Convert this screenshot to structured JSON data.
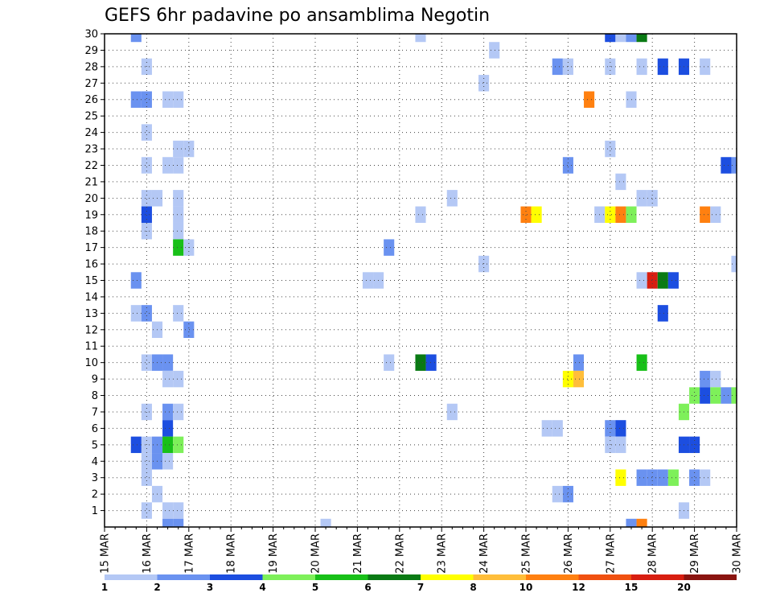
{
  "chart_data": {
    "type": "heatmap",
    "title": "GEFS 6hr padavine po ansamblima Negotin",
    "xlabel": "",
    "ylabel": "",
    "x_tick_labels": [
      "15 MAR",
      "16 MAR",
      "17 MAR",
      "18 MAR",
      "19 MAR",
      "20 MAR",
      "21 MAR",
      "22 MAR",
      "23 MAR",
      "24 MAR",
      "25 MAR",
      "26 MAR",
      "27 MAR",
      "28 MAR",
      "29 MAR",
      "30 MAR"
    ],
    "x_range_days": [
      15,
      30
    ],
    "y_tick_labels": [
      "1",
      "2",
      "3",
      "4",
      "5",
      "6",
      "7",
      "8",
      "9",
      "10",
      "11",
      "12",
      "13",
      "14",
      "15",
      "16",
      "17",
      "18",
      "19",
      "20",
      "21",
      "22",
      "23",
      "24",
      "25",
      "26",
      "27",
      "28",
      "29",
      "30"
    ],
    "y_range": [
      0,
      30
    ],
    "grid": true,
    "legend_placement": "bottom",
    "levels": [
      {
        "label": "1",
        "color": "#b4c8f5"
      },
      {
        "label": "2",
        "color": "#6a92f0"
      },
      {
        "label": "3",
        "color": "#1c4ee0"
      },
      {
        "label": "4",
        "color": "#7ef05a"
      },
      {
        "label": "5",
        "color": "#18c018"
      },
      {
        "label": "6",
        "color": "#0a7a14"
      },
      {
        "label": "7",
        "color": "#ffff00"
      },
      {
        "label": "8",
        "color": "#ffbe3a"
      },
      {
        "label": "10",
        "color": "#ff8010"
      },
      {
        "label": "12",
        "color": "#f05010"
      },
      {
        "label": "15",
        "color": "#d81e10"
      },
      {
        "label": "20",
        "color": "#8a1410"
      }
    ],
    "cells": [
      {
        "day": 15.75,
        "member": 30,
        "level": 1
      },
      {
        "day": 15.75,
        "member": 26,
        "level": 1
      },
      {
        "day": 15.75,
        "member": 15,
        "level": 1
      },
      {
        "day": 15.75,
        "member": 13,
        "level": 0
      },
      {
        "day": 15.75,
        "member": 5,
        "level": 2
      },
      {
        "day": 16.0,
        "member": 28,
        "level": 0
      },
      {
        "day": 16.0,
        "member": 26,
        "level": 1
      },
      {
        "day": 16.0,
        "member": 24,
        "level": 0
      },
      {
        "day": 16.0,
        "member": 22,
        "level": 0
      },
      {
        "day": 16.0,
        "member": 20,
        "level": 0
      },
      {
        "day": 16.0,
        "member": 19,
        "level": 2
      },
      {
        "day": 16.0,
        "member": 18,
        "level": 0
      },
      {
        "day": 16.0,
        "member": 13,
        "level": 1
      },
      {
        "day": 16.0,
        "member": 10,
        "level": 0
      },
      {
        "day": 16.0,
        "member": 7,
        "level": 0
      },
      {
        "day": 16.0,
        "member": 5,
        "level": 0
      },
      {
        "day": 16.0,
        "member": 4,
        "level": 0
      },
      {
        "day": 16.0,
        "member": 3,
        "level": 0
      },
      {
        "day": 16.0,
        "member": 1,
        "level": 0
      },
      {
        "day": 16.25,
        "member": 20,
        "level": 0
      },
      {
        "day": 16.25,
        "member": 12,
        "level": 0
      },
      {
        "day": 16.25,
        "member": 10,
        "level": 1
      },
      {
        "day": 16.25,
        "member": 5,
        "level": 1
      },
      {
        "day": 16.25,
        "member": 4,
        "level": 1
      },
      {
        "day": 16.25,
        "member": 2,
        "level": 0
      },
      {
        "day": 16.5,
        "member": 26,
        "level": 0
      },
      {
        "day": 16.5,
        "member": 22,
        "level": 0
      },
      {
        "day": 16.5,
        "member": 10,
        "level": 1
      },
      {
        "day": 16.5,
        "member": 9,
        "level": 0
      },
      {
        "day": 16.5,
        "member": 7,
        "level": 1
      },
      {
        "day": 16.5,
        "member": 6,
        "level": 2
      },
      {
        "day": 16.5,
        "member": 5,
        "level": 4
      },
      {
        "day": 16.5,
        "member": 4,
        "level": 0
      },
      {
        "day": 16.5,
        "member": 1,
        "level": 0
      },
      {
        "day": 16.5,
        "member": 0,
        "level": 1
      },
      {
        "day": 16.75,
        "member": 26,
        "level": 0
      },
      {
        "day": 16.75,
        "member": 23,
        "level": 0
      },
      {
        "day": 16.75,
        "member": 22,
        "level": 0
      },
      {
        "day": 16.75,
        "member": 20,
        "level": 0
      },
      {
        "day": 16.75,
        "member": 19,
        "level": 0
      },
      {
        "day": 16.75,
        "member": 18,
        "level": 0
      },
      {
        "day": 16.75,
        "member": 17,
        "level": 4
      },
      {
        "day": 16.75,
        "member": 13,
        "level": 0
      },
      {
        "day": 16.75,
        "member": 9,
        "level": 0
      },
      {
        "day": 16.75,
        "member": 7,
        "level": 0
      },
      {
        "day": 16.75,
        "member": 5,
        "level": 3
      },
      {
        "day": 16.75,
        "member": 1,
        "level": 0
      },
      {
        "day": 16.75,
        "member": 0,
        "level": 1
      },
      {
        "day": 17.0,
        "member": 23,
        "level": 0
      },
      {
        "day": 17.0,
        "member": 17,
        "level": 0
      },
      {
        "day": 17.0,
        "member": 12,
        "level": 1
      },
      {
        "day": 20.25,
        "member": 0,
        "level": 0
      },
      {
        "day": 21.25,
        "member": 15,
        "level": 0
      },
      {
        "day": 21.5,
        "member": 15,
        "level": 0
      },
      {
        "day": 21.75,
        "member": 17,
        "level": 1
      },
      {
        "day": 21.75,
        "member": 10,
        "level": 0
      },
      {
        "day": 22.5,
        "member": 30,
        "level": 0
      },
      {
        "day": 22.5,
        "member": 19,
        "level": 0
      },
      {
        "day": 22.5,
        "member": 10,
        "level": 5
      },
      {
        "day": 22.75,
        "member": 10,
        "level": 2
      },
      {
        "day": 23.25,
        "member": 20,
        "level": 0
      },
      {
        "day": 23.25,
        "member": 7,
        "level": 0
      },
      {
        "day": 24.0,
        "member": 27,
        "level": 0
      },
      {
        "day": 24.0,
        "member": 16,
        "level": 0
      },
      {
        "day": 24.25,
        "member": 29,
        "level": 0
      },
      {
        "day": 25.0,
        "member": 19,
        "level": 8
      },
      {
        "day": 25.25,
        "member": 19,
        "level": 6
      },
      {
        "day": 25.5,
        "member": 6,
        "level": 0
      },
      {
        "day": 25.75,
        "member": 28,
        "level": 1
      },
      {
        "day": 25.75,
        "member": 6,
        "level": 0
      },
      {
        "day": 25.75,
        "member": 2,
        "level": 0
      },
      {
        "day": 26.0,
        "member": 28,
        "level": 0
      },
      {
        "day": 26.0,
        "member": 22,
        "level": 1
      },
      {
        "day": 26.0,
        "member": 9,
        "level": 6
      },
      {
        "day": 26.0,
        "member": 2,
        "level": 1
      },
      {
        "day": 26.25,
        "member": 10,
        "level": 1
      },
      {
        "day": 26.25,
        "member": 9,
        "level": 7
      },
      {
        "day": 26.5,
        "member": 26,
        "level": 8
      },
      {
        "day": 26.75,
        "member": 19,
        "level": 0
      },
      {
        "day": 27.0,
        "member": 30,
        "level": 2
      },
      {
        "day": 27.0,
        "member": 28,
        "level": 0
      },
      {
        "day": 27.0,
        "member": 23,
        "level": 0
      },
      {
        "day": 27.0,
        "member": 19,
        "level": 6
      },
      {
        "day": 27.0,
        "member": 6,
        "level": 1
      },
      {
        "day": 27.0,
        "member": 5,
        "level": 0
      },
      {
        "day": 27.25,
        "member": 30,
        "level": 0
      },
      {
        "day": 27.25,
        "member": 21,
        "level": 0
      },
      {
        "day": 27.25,
        "member": 19,
        "level": 8
      },
      {
        "day": 27.25,
        "member": 6,
        "level": 2
      },
      {
        "day": 27.25,
        "member": 5,
        "level": 0
      },
      {
        "day": 27.25,
        "member": 3,
        "level": 6
      },
      {
        "day": 27.5,
        "member": 30,
        "level": 1
      },
      {
        "day": 27.5,
        "member": 26,
        "level": 0
      },
      {
        "day": 27.5,
        "member": 19,
        "level": 3
      },
      {
        "day": 27.5,
        "member": 0,
        "level": 1
      },
      {
        "day": 27.75,
        "member": 30,
        "level": 5
      },
      {
        "day": 27.75,
        "member": 28,
        "level": 0
      },
      {
        "day": 27.75,
        "member": 20,
        "level": 0
      },
      {
        "day": 27.75,
        "member": 15,
        "level": 0
      },
      {
        "day": 27.75,
        "member": 10,
        "level": 4
      },
      {
        "day": 27.75,
        "member": 3,
        "level": 1
      },
      {
        "day": 27.75,
        "member": 0,
        "level": 8
      },
      {
        "day": 28.0,
        "member": 20,
        "level": 0
      },
      {
        "day": 28.0,
        "member": 15,
        "level": 10
      },
      {
        "day": 28.0,
        "member": 3,
        "level": 1
      },
      {
        "day": 28.25,
        "member": 28,
        "level": 2
      },
      {
        "day": 28.25,
        "member": 15,
        "level": 5
      },
      {
        "day": 28.25,
        "member": 13,
        "level": 2
      },
      {
        "day": 28.25,
        "member": 3,
        "level": 1
      },
      {
        "day": 28.5,
        "member": 15,
        "level": 2
      },
      {
        "day": 28.5,
        "member": 3,
        "level": 3
      },
      {
        "day": 28.75,
        "member": 28,
        "level": 2
      },
      {
        "day": 28.75,
        "member": 7,
        "level": 3
      },
      {
        "day": 28.75,
        "member": 5,
        "level": 2
      },
      {
        "day": 28.75,
        "member": 1,
        "level": 0
      },
      {
        "day": 29.0,
        "member": 8,
        "level": 3
      },
      {
        "day": 29.0,
        "member": 5,
        "level": 2
      },
      {
        "day": 29.0,
        "member": 3,
        "level": 1
      },
      {
        "day": 29.25,
        "member": 28,
        "level": 0
      },
      {
        "day": 29.25,
        "member": 19,
        "level": 8
      },
      {
        "day": 29.25,
        "member": 9,
        "level": 1
      },
      {
        "day": 29.25,
        "member": 8,
        "level": 2
      },
      {
        "day": 29.25,
        "member": 3,
        "level": 0
      },
      {
        "day": 29.5,
        "member": 19,
        "level": 0
      },
      {
        "day": 29.5,
        "member": 9,
        "level": 0
      },
      {
        "day": 29.5,
        "member": 8,
        "level": 3
      },
      {
        "day": 29.75,
        "member": 22,
        "level": 2
      },
      {
        "day": 29.75,
        "member": 8,
        "level": 1
      },
      {
        "day": 30.0,
        "member": 22,
        "level": 1
      },
      {
        "day": 30.0,
        "member": 16,
        "level": 0
      },
      {
        "day": 30.0,
        "member": 8,
        "level": 3
      }
    ]
  }
}
